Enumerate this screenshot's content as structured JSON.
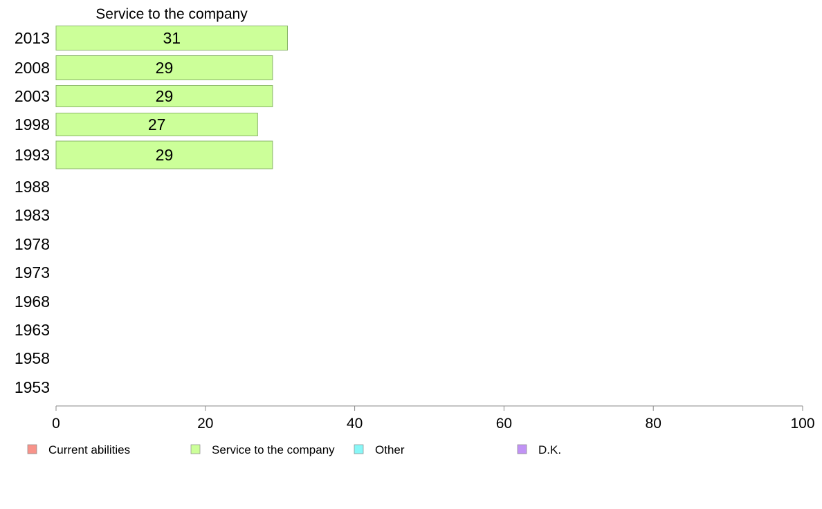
{
  "chart_data": {
    "type": "bar",
    "orientation": "horizontal",
    "title": "Service to the company",
    "categories": [
      "2013",
      "2008",
      "2003",
      "1998",
      "1993",
      "1988",
      "1983",
      "1978",
      "1973",
      "1968",
      "1963",
      "1958",
      "1953"
    ],
    "series": [
      {
        "name": "Service to the company",
        "values": [
          31,
          29,
          29,
          27,
          29,
          null,
          null,
          null,
          null,
          null,
          null,
          null,
          null
        ]
      }
    ],
    "xlim": [
      0,
      100
    ],
    "x_ticks": [
      0,
      20,
      40,
      60,
      80,
      100
    ],
    "grid": false,
    "legend_position": "bottom",
    "legend": [
      {
        "label": "Current abilities",
        "color": "#f8938a"
      },
      {
        "label": "Service to the company",
        "color": "#ccff99"
      },
      {
        "label": "Other",
        "color": "#88f7f7"
      },
      {
        "label": "D.K.",
        "color": "#c193f5"
      }
    ],
    "colors": {
      "bar_fill": "#ccff99",
      "bar_stroke": "#8ab56a",
      "axis": "#888888"
    }
  }
}
